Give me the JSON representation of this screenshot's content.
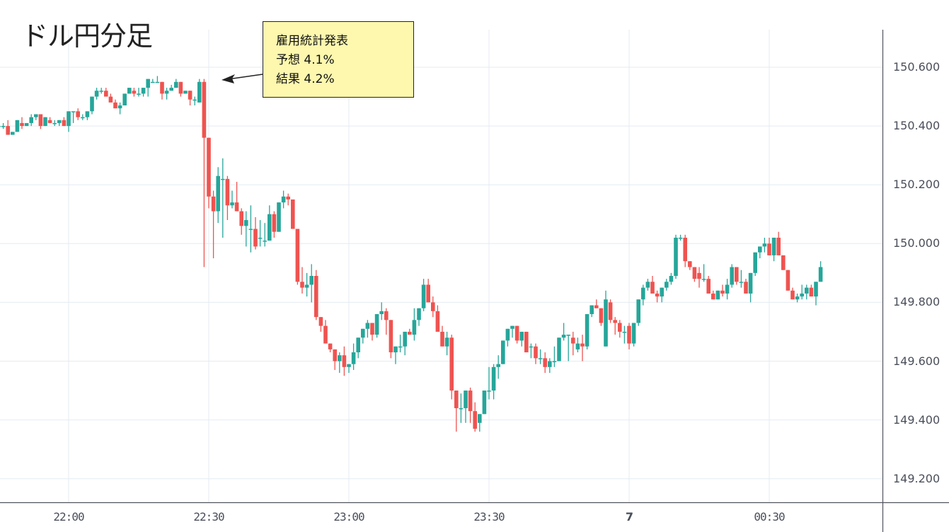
{
  "title": "ドル円分足",
  "annotation": {
    "line1": "雇用統計発表",
    "line2": "予想 4.1%",
    "line3": "結果 4.2%",
    "arrow_icon": "arrow-left-icon"
  },
  "colors": {
    "up": "#26a69a",
    "down": "#ef5350",
    "grid": "#e4ebf2",
    "axis": "#50535e",
    "note_bg": "#fdf8ae"
  },
  "y_axis": {
    "labels": [
      "150.600",
      "150.400",
      "150.200",
      "150.000",
      "149.800",
      "149.600",
      "149.400",
      "149.200"
    ]
  },
  "x_axis": {
    "labels": [
      {
        "text": "22:00",
        "bold": false
      },
      {
        "text": "22:30",
        "bold": false
      },
      {
        "text": "23:00",
        "bold": false
      },
      {
        "text": "23:30",
        "bold": false
      },
      {
        "text": "7",
        "bold": true
      },
      {
        "text": "00:30",
        "bold": false
      }
    ]
  },
  "chart_data": {
    "type": "candlestick",
    "title": "ドル円分足",
    "xlabel": "",
    "ylabel": "",
    "interval": "1 minute",
    "start_time": "21:45",
    "ylim": [
      149.12,
      150.72
    ],
    "y_ticks": [
      150.6,
      150.4,
      150.2,
      150.0,
      149.8,
      149.6,
      149.4,
      149.2
    ],
    "x_ticks": [
      "22:00",
      "22:30",
      "23:00",
      "23:30",
      "7",
      "00:30"
    ],
    "grid": true,
    "annotation": {
      "text": [
        "雇用統計発表",
        "予想 4.1%",
        "結果 4.2%"
      ],
      "points_to": "22:29 candle high ~150.56"
    },
    "candles": [
      [
        150.4,
        150.41,
        150.38,
        150.4
      ],
      [
        150.4,
        150.41,
        150.39,
        150.4
      ],
      [
        150.4,
        150.42,
        150.37,
        150.37
      ],
      [
        150.37,
        150.38,
        150.37,
        150.38
      ],
      [
        150.38,
        150.42,
        150.38,
        150.42
      ],
      [
        150.41,
        150.43,
        150.39,
        150.4
      ],
      [
        150.4,
        150.41,
        150.4,
        150.41
      ],
      [
        150.41,
        150.44,
        150.4,
        150.43
      ],
      [
        150.43,
        150.44,
        150.42,
        150.44
      ],
      [
        150.44,
        150.44,
        150.39,
        150.4
      ],
      [
        150.4,
        150.43,
        150.4,
        150.43
      ],
      [
        150.42,
        150.43,
        150.41,
        150.41
      ],
      [
        150.41,
        150.42,
        150.4,
        150.41
      ],
      [
        150.41,
        150.42,
        150.4,
        150.42
      ],
      [
        150.42,
        150.43,
        150.4,
        150.4
      ],
      [
        150.4,
        150.45,
        150.38,
        150.45
      ],
      [
        150.45,
        150.45,
        150.41,
        150.45
      ],
      [
        150.45,
        150.46,
        150.42,
        150.43
      ],
      [
        150.43,
        150.44,
        150.42,
        150.43
      ],
      [
        150.43,
        150.45,
        150.42,
        150.45
      ],
      [
        150.45,
        150.5,
        150.44,
        150.5
      ],
      [
        150.5,
        150.53,
        150.49,
        150.52
      ],
      [
        150.52,
        150.53,
        150.51,
        150.52
      ],
      [
        150.52,
        150.53,
        150.5,
        150.5
      ],
      [
        150.5,
        150.51,
        150.48,
        150.48
      ],
      [
        150.48,
        150.49,
        150.46,
        150.46
      ],
      [
        150.46,
        150.48,
        150.44,
        150.47
      ],
      [
        150.47,
        150.51,
        150.47,
        150.51
      ],
      [
        150.51,
        150.53,
        150.51,
        150.53
      ],
      [
        150.52,
        150.53,
        150.5,
        150.51
      ],
      [
        150.51,
        150.53,
        150.5,
        150.51
      ],
      [
        150.51,
        150.53,
        150.5,
        150.53
      ],
      [
        150.53,
        150.56,
        150.5,
        150.56
      ],
      [
        150.55,
        150.56,
        150.55,
        150.55
      ],
      [
        150.55,
        150.57,
        150.55,
        150.55
      ],
      [
        150.55,
        150.55,
        150.49,
        150.51
      ],
      [
        150.51,
        150.53,
        150.49,
        150.52
      ],
      [
        150.52,
        150.54,
        150.52,
        150.53
      ],
      [
        150.53,
        150.56,
        150.53,
        150.55
      ],
      [
        150.55,
        150.55,
        150.5,
        150.51
      ],
      [
        150.51,
        150.52,
        150.51,
        150.52
      ],
      [
        150.52,
        150.52,
        150.47,
        150.49
      ],
      [
        150.49,
        150.5,
        150.47,
        150.49
      ],
      [
        150.48,
        150.56,
        150.48,
        150.55
      ],
      [
        150.55,
        150.56,
        149.92,
        150.36
      ],
      [
        150.36,
        150.24,
        150.12,
        150.16
      ],
      [
        150.16,
        150.18,
        149.95,
        150.11
      ],
      [
        150.11,
        150.26,
        150.07,
        150.23
      ],
      [
        150.22,
        150.29,
        150.02,
        150.22
      ],
      [
        150.22,
        150.23,
        150.08,
        150.13
      ],
      [
        150.13,
        150.18,
        150.12,
        150.14
      ],
      [
        150.14,
        150.21,
        150.13,
        150.11
      ],
      [
        150.11,
        150.12,
        150.03,
        150.06
      ],
      [
        150.06,
        150.11,
        149.99,
        150.08
      ],
      [
        150.05,
        150.13,
        149.97,
        150.05
      ],
      [
        150.05,
        150.09,
        149.98,
        149.99
      ],
      [
        150.02,
        150.08,
        149.99,
        150.02
      ],
      [
        150.01,
        150.07,
        149.99,
        150.01
      ],
      [
        150.01,
        150.13,
        150.02,
        150.1
      ],
      [
        150.1,
        150.11,
        150.02,
        150.04
      ],
      [
        150.04,
        150.14,
        150.06,
        150.14
      ],
      [
        150.14,
        150.18,
        150.12,
        150.16
      ],
      [
        150.16,
        150.17,
        150.13,
        150.15
      ],
      [
        150.15,
        150.15,
        150.05,
        150.05
      ],
      [
        150.05,
        150.05,
        149.86,
        149.87
      ],
      [
        149.87,
        149.92,
        149.83,
        149.85
      ],
      [
        149.85,
        149.9,
        149.82,
        149.86
      ],
      [
        149.86,
        149.93,
        149.8,
        149.89
      ],
      [
        149.89,
        149.91,
        149.74,
        149.75
      ],
      [
        149.75,
        149.75,
        149.7,
        149.72
      ],
      [
        149.72,
        149.74,
        149.66,
        149.66
      ],
      [
        149.66,
        149.66,
        149.63,
        149.64
      ],
      [
        149.64,
        149.64,
        149.57,
        149.6
      ],
      [
        149.6,
        149.63,
        149.56,
        149.62
      ],
      [
        149.62,
        149.65,
        149.55,
        149.58
      ],
      [
        149.58,
        149.59,
        149.56,
        149.59
      ],
      [
        149.59,
        149.66,
        149.57,
        149.63
      ],
      [
        149.63,
        149.68,
        149.61,
        149.68
      ],
      [
        149.68,
        149.71,
        149.66,
        149.71
      ],
      [
        149.71,
        149.74,
        149.68,
        149.73
      ],
      [
        149.73,
        149.73,
        149.67,
        149.69
      ],
      [
        149.69,
        149.75,
        149.68,
        149.76
      ],
      [
        149.76,
        149.8,
        149.74,
        149.77
      ],
      [
        149.77,
        149.78,
        149.69,
        149.74
      ],
      [
        149.74,
        149.74,
        149.61,
        149.63
      ],
      [
        149.63,
        149.65,
        149.59,
        149.65
      ],
      [
        149.65,
        149.69,
        149.63,
        149.65
      ],
      [
        149.65,
        149.7,
        149.62,
        149.7
      ],
      [
        149.7,
        149.71,
        149.69,
        149.69
      ],
      [
        149.69,
        149.78,
        149.67,
        149.74
      ],
      [
        149.74,
        149.78,
        149.72,
        149.78
      ],
      [
        149.78,
        149.88,
        149.77,
        149.86
      ],
      [
        149.86,
        149.88,
        149.8,
        149.8
      ],
      [
        149.8,
        149.82,
        149.75,
        149.77
      ],
      [
        149.77,
        149.79,
        149.7,
        149.7
      ],
      [
        149.7,
        149.72,
        149.65,
        149.65
      ],
      [
        149.65,
        149.7,
        149.62,
        149.68
      ],
      [
        149.68,
        149.69,
        149.47,
        149.5
      ],
      [
        149.5,
        149.5,
        149.36,
        149.44
      ],
      [
        149.44,
        149.49,
        149.39,
        149.44
      ],
      [
        149.44,
        149.5,
        149.39,
        149.5
      ],
      [
        149.5,
        149.51,
        149.39,
        149.43
      ],
      [
        149.43,
        149.46,
        149.36,
        149.37
      ],
      [
        149.39,
        149.42,
        149.36,
        149.42
      ],
      [
        149.42,
        149.5,
        149.42,
        149.5
      ],
      [
        149.5,
        149.58,
        149.47,
        149.5
      ],
      [
        149.5,
        149.59,
        149.47,
        149.58
      ],
      [
        149.58,
        149.62,
        149.54,
        149.59
      ],
      [
        149.59,
        149.67,
        149.59,
        149.67
      ],
      [
        149.67,
        149.71,
        149.65,
        149.71
      ],
      [
        149.71,
        149.72,
        149.68,
        149.72
      ],
      [
        149.72,
        149.72,
        149.66,
        149.67
      ],
      [
        149.67,
        149.7,
        149.65,
        149.7
      ],
      [
        149.7,
        149.7,
        149.63,
        149.63
      ],
      [
        149.65,
        149.66,
        149.61,
        149.65
      ],
      [
        149.65,
        149.66,
        149.59,
        149.61
      ],
      [
        149.61,
        149.64,
        149.59,
        149.61
      ],
      [
        149.61,
        149.63,
        149.56,
        149.58
      ],
      [
        149.58,
        149.61,
        149.56,
        149.6
      ],
      [
        149.6,
        149.65,
        149.58,
        149.6
      ],
      [
        149.6,
        149.63,
        149.6,
        149.68
      ],
      [
        149.68,
        149.73,
        149.67,
        149.69
      ],
      [
        149.69,
        149.69,
        149.6,
        149.69
      ],
      [
        149.68,
        149.7,
        149.62,
        149.66
      ],
      [
        149.64,
        149.68,
        149.63,
        149.66
      ],
      [
        149.66,
        149.69,
        149.6,
        149.65
      ],
      [
        149.65,
        149.76,
        149.64,
        149.76
      ],
      [
        149.76,
        149.79,
        149.75,
        149.79
      ],
      [
        149.79,
        149.81,
        149.78,
        149.78
      ],
      [
        149.78,
        149.78,
        149.72,
        149.73
      ],
      [
        149.65,
        149.84,
        149.65,
        149.81
      ],
      [
        149.8,
        149.81,
        149.73,
        149.74
      ],
      [
        149.74,
        149.75,
        149.69,
        149.73
      ],
      [
        149.73,
        149.74,
        149.68,
        149.7
      ],
      [
        149.7,
        149.72,
        149.66,
        149.7
      ],
      [
        149.72,
        149.73,
        149.64,
        149.66
      ],
      [
        149.66,
        149.69,
        149.65,
        149.73
      ],
      [
        149.73,
        149.81,
        149.72,
        149.81
      ],
      [
        149.81,
        149.86,
        149.79,
        149.85
      ],
      [
        149.85,
        149.88,
        149.84,
        149.87
      ],
      [
        149.87,
        149.89,
        149.83,
        149.83
      ],
      [
        149.83,
        149.84,
        149.8,
        149.82
      ],
      [
        149.82,
        149.84,
        149.8,
        149.85
      ],
      [
        149.85,
        149.88,
        149.84,
        149.87
      ],
      [
        149.87,
        149.9,
        149.86,
        149.89
      ],
      [
        149.89,
        150.03,
        149.88,
        150.02
      ],
      [
        150.02,
        150.03,
        150.01,
        150.02
      ],
      [
        150.02,
        150.03,
        149.92,
        149.94
      ],
      [
        149.94,
        149.94,
        149.91,
        149.92
      ],
      [
        149.92,
        149.91,
        149.87,
        149.88
      ],
      [
        149.9,
        149.92,
        149.85,
        149.88
      ],
      [
        149.88,
        149.93,
        149.87,
        149.88
      ],
      [
        149.88,
        149.89,
        149.83,
        149.83
      ],
      [
        149.83,
        149.84,
        149.81,
        149.81
      ],
      [
        149.81,
        149.84,
        149.81,
        149.84
      ],
      [
        149.84,
        149.86,
        149.82,
        149.83
      ],
      [
        149.83,
        149.88,
        149.81,
        149.86
      ],
      [
        149.86,
        149.93,
        149.85,
        149.92
      ],
      [
        149.92,
        149.92,
        149.86,
        149.87
      ],
      [
        149.87,
        149.91,
        149.85,
        149.87
      ],
      [
        149.87,
        149.88,
        149.83,
        149.83
      ],
      [
        149.83,
        149.89,
        149.8,
        149.9
      ],
      [
        149.9,
        149.94,
        149.89,
        149.97
      ],
      [
        149.97,
        149.99,
        149.95,
        149.99
      ],
      [
        149.99,
        150.02,
        149.97,
        150.0
      ],
      [
        150.0,
        150.02,
        149.96,
        149.96
      ],
      [
        149.96,
        150.02,
        149.94,
        150.02
      ],
      [
        150.02,
        150.04,
        149.96,
        149.96
      ],
      [
        149.96,
        149.96,
        149.91,
        149.91
      ],
      [
        149.91,
        149.91,
        149.84,
        149.84
      ],
      [
        149.84,
        149.85,
        149.81,
        149.81
      ],
      [
        149.81,
        149.83,
        149.8,
        149.82
      ],
      [
        149.82,
        149.86,
        149.81,
        149.83
      ],
      [
        149.83,
        149.86,
        149.81,
        149.85
      ],
      [
        149.85,
        149.86,
        149.82,
        149.82
      ],
      [
        149.82,
        149.87,
        149.79,
        149.87
      ],
      [
        149.87,
        149.94,
        149.87,
        149.92
      ]
    ]
  }
}
